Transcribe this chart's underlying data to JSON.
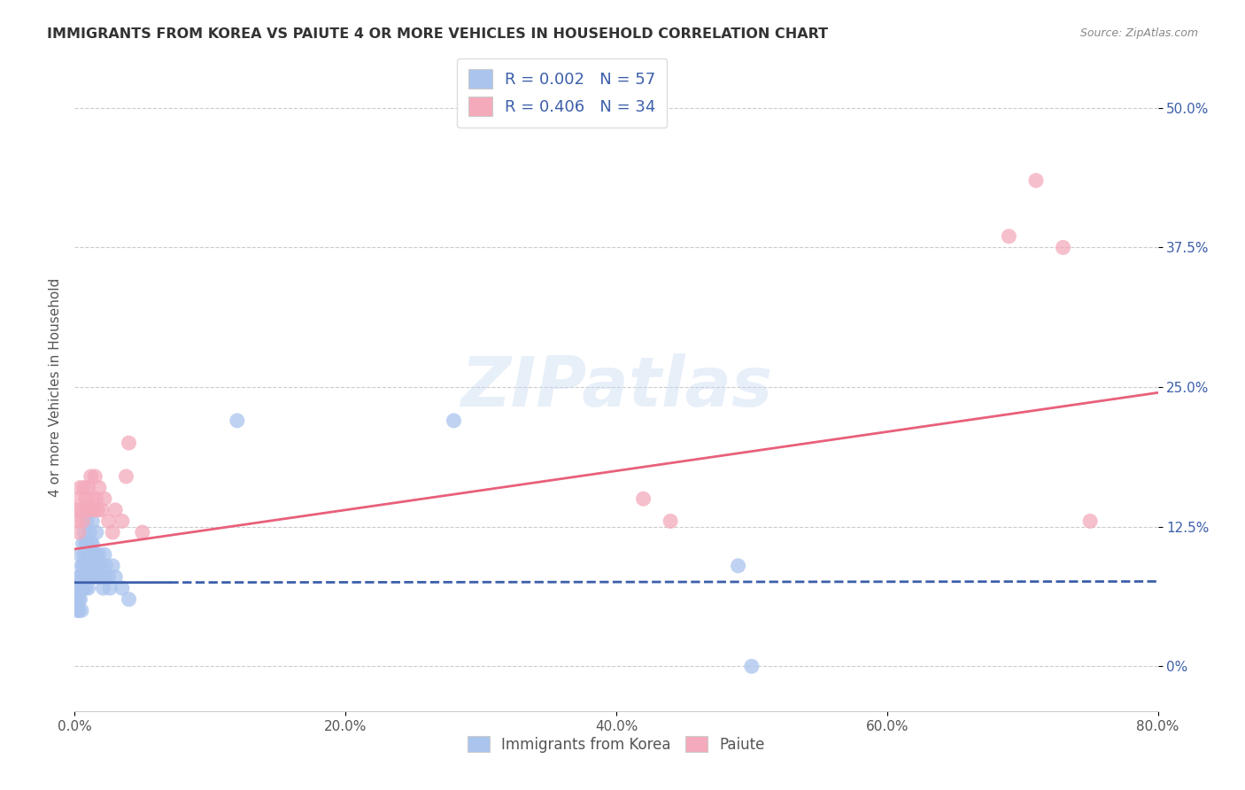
{
  "title": "IMMIGRANTS FROM KOREA VS PAIUTE 4 OR MORE VEHICLES IN HOUSEHOLD CORRELATION CHART",
  "source": "Source: ZipAtlas.com",
  "ylabel": "4 or more Vehicles in Household",
  "xlim": [
    0,
    0.8
  ],
  "ylim": [
    -0.04,
    0.54
  ],
  "xticks": [
    0.0,
    0.2,
    0.4,
    0.6,
    0.8
  ],
  "xticklabels": [
    "0.0%",
    "20.0%",
    "40.0%",
    "60.0%",
    "80.0%"
  ],
  "yticks": [
    0.0,
    0.125,
    0.25,
    0.375,
    0.5
  ],
  "yticklabels": [
    "0%",
    "12.5%",
    "25.0%",
    "37.5%",
    "50.0%"
  ],
  "korea_R": "0.002",
  "korea_N": "57",
  "paiute_R": "0.406",
  "paiute_N": "34",
  "korea_color": "#aac4ed",
  "paiute_color": "#f4aabb",
  "korea_line_color": "#3c5faa",
  "paiute_line_color": "#e8607a",
  "watermark": "ZIPatlas",
  "legend_korea_label": "Immigrants from Korea",
  "legend_paiute_label": "Paiute",
  "korea_x": [
    0.001,
    0.002,
    0.002,
    0.003,
    0.003,
    0.003,
    0.004,
    0.004,
    0.004,
    0.005,
    0.005,
    0.005,
    0.006,
    0.006,
    0.006,
    0.007,
    0.007,
    0.007,
    0.008,
    0.008,
    0.008,
    0.009,
    0.009,
    0.01,
    0.01,
    0.01,
    0.011,
    0.011,
    0.012,
    0.012,
    0.013,
    0.013,
    0.014,
    0.014,
    0.015,
    0.015,
    0.016,
    0.016,
    0.017,
    0.018,
    0.018,
    0.019,
    0.02,
    0.021,
    0.022,
    0.022,
    0.023,
    0.025,
    0.026,
    0.028,
    0.03,
    0.035,
    0.04,
    0.12,
    0.28,
    0.49,
    0.5
  ],
  "korea_y": [
    0.06,
    0.05,
    0.07,
    0.08,
    0.06,
    0.05,
    0.1,
    0.08,
    0.06,
    0.09,
    0.07,
    0.05,
    0.11,
    0.09,
    0.07,
    0.12,
    0.1,
    0.08,
    0.11,
    0.09,
    0.07,
    0.13,
    0.11,
    0.1,
    0.08,
    0.07,
    0.12,
    0.1,
    0.11,
    0.09,
    0.13,
    0.11,
    0.1,
    0.08,
    0.1,
    0.08,
    0.12,
    0.1,
    0.09,
    0.1,
    0.08,
    0.09,
    0.08,
    0.07,
    0.1,
    0.08,
    0.09,
    0.08,
    0.07,
    0.09,
    0.08,
    0.07,
    0.06,
    0.22,
    0.22,
    0.09,
    0.0
  ],
  "paiute_x": [
    0.001,
    0.002,
    0.003,
    0.003,
    0.004,
    0.005,
    0.006,
    0.007,
    0.008,
    0.009,
    0.01,
    0.011,
    0.012,
    0.013,
    0.014,
    0.015,
    0.016,
    0.017,
    0.018,
    0.02,
    0.022,
    0.025,
    0.028,
    0.03,
    0.035,
    0.038,
    0.04,
    0.05,
    0.42,
    0.44,
    0.69,
    0.71,
    0.73,
    0.75
  ],
  "paiute_y": [
    0.14,
    0.13,
    0.15,
    0.12,
    0.16,
    0.14,
    0.13,
    0.16,
    0.15,
    0.14,
    0.16,
    0.14,
    0.17,
    0.15,
    0.14,
    0.17,
    0.15,
    0.14,
    0.16,
    0.14,
    0.15,
    0.13,
    0.12,
    0.14,
    0.13,
    0.17,
    0.2,
    0.12,
    0.15,
    0.13,
    0.385,
    0.435,
    0.375,
    0.13
  ],
  "korea_trend_x": [
    0.0,
    0.8
  ],
  "korea_trend_y": [
    0.075,
    0.076
  ],
  "paiute_trend_x": [
    0.0,
    0.8
  ],
  "paiute_trend_y": [
    0.105,
    0.245
  ]
}
